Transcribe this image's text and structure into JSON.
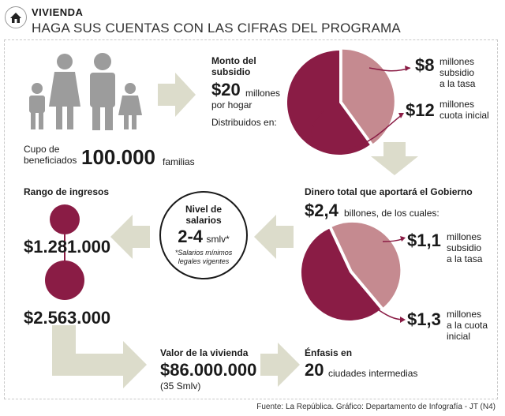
{
  "header": {
    "section": "VIVIENDA",
    "subtitle": "HAGA SUS CUENTAS CON LAS CIFRAS DEL PROGRAMA"
  },
  "beneficiaries": {
    "prefix_line1": "Cupo de",
    "prefix_line2": "beneficiados",
    "value": "100.000",
    "unit": "familias"
  },
  "subsidy": {
    "title_line1": "Monto del",
    "title_line2": "subsidio",
    "value": "$20",
    "unit": "millones",
    "unit2": "por hogar",
    "distributed": "Distribuidos en:",
    "pie": {
      "slices": [
        {
          "value": 8,
          "display": "$8",
          "label_line1": "millones",
          "label_line2": "subsidio",
          "label_line3": "a la tasa",
          "color": "#c58a90"
        },
        {
          "value": 12,
          "display": "$12",
          "label_line1": "millones",
          "label_line2": "cuota inicial",
          "label_line3": "",
          "color": "#8a1c45"
        }
      ]
    }
  },
  "government": {
    "title": "Dinero total que aportará el Gobierno",
    "value": "$2,4",
    "unit": "billones, de los cuales:",
    "pie": {
      "slices": [
        {
          "value": 1.1,
          "display": "$1,1",
          "label_line1": "millones",
          "label_line2": "subsidio",
          "label_line3": "a la tasa",
          "color": "#c58a90"
        },
        {
          "value": 1.3,
          "display": "$1,3",
          "label_line1": "millones",
          "label_line2": "a la cuota",
          "label_line3": "inicial",
          "color": "#8a1c45"
        }
      ]
    }
  },
  "salary": {
    "title_line1": "Nivel de",
    "title_line2": "salarios",
    "value": "2-4",
    "unit": "smlv*",
    "note_line1": "*Salarios mínimos",
    "note_line2": "legales vigentes"
  },
  "income": {
    "title": "Rango de ingresos",
    "low": "$1.281.000",
    "high": "$2.563.000"
  },
  "house_value": {
    "title": "Valor de la vivienda",
    "value": "$86.000.000",
    "note": "(35 Smlv)"
  },
  "emphasis": {
    "title": "Énfasis en",
    "value": "20",
    "unit": "ciudades intermedias"
  },
  "footer": "Fuente: La República. Gráfico: Departamento de Infografía - JT (N4)",
  "colors": {
    "dark": "#8a1c45",
    "light": "#c58a90",
    "arrow": "#dcdccb",
    "people": "#9c9c9c"
  }
}
